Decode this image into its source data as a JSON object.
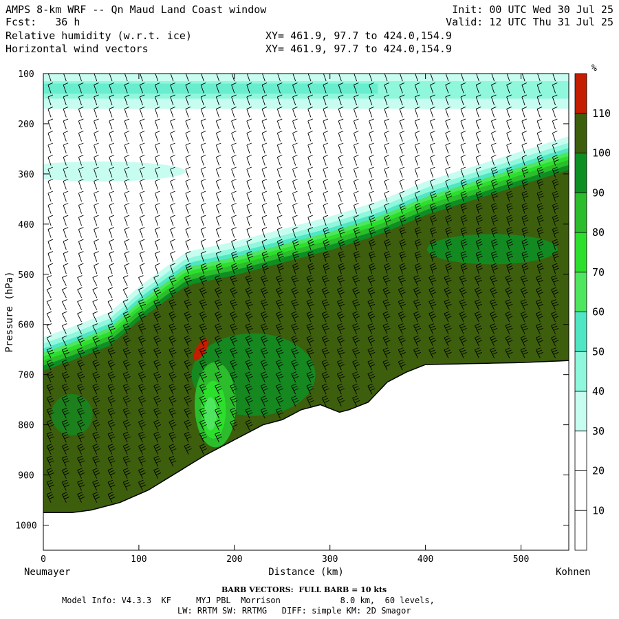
{
  "header": {
    "title": "AMPS 8-km WRF -- Qn Maud Land Coast window",
    "fcst": "Fcst:   36 h",
    "line3": "Relative humidity (w.r.t. ice)",
    "line4": "Horizontal wind vectors",
    "xy1": "XY= 461.9, 97.7 to 424.0,154.9",
    "xy2": "XY= 461.9, 97.7 to 424.0,154.9",
    "init": "Init: 00 UTC Wed 30 Jul 25",
    "valid": "Valid: 12 UTC Thu 31 Jul 25"
  },
  "footer": {
    "barb": "BARB VECTORS:  FULL BARB = 10 kts",
    "model1": "Model Info: V4.3.3  KF     MYJ PBL  Morrison            8.0 km,  60 levels,",
    "model2": "LW: RRTM SW: RRTMG   DIFF: simple KM: 2D Smagor"
  },
  "colors": {
    "c0": "#ffffff",
    "c30": "#c7fdf0",
    "c40": "#8ef7dc",
    "c50": "#4fe6c4",
    "c60": "#4ee65f",
    "c70": "#2cdf2c",
    "c80": "#2bbd2b",
    "c90": "#0e8f24",
    "c100": "#3d5e0d",
    "c110": "#c41d00"
  },
  "chart_data": {
    "type": "heatmap",
    "title": "Relative humidity (w.r.t. ice)",
    "xlabel": "Distance (km)",
    "ylabel": "Pressure (hPa)",
    "xlim": [
      0,
      550
    ],
    "ylim": [
      1050,
      100
    ],
    "x_ticks": [
      0,
      100,
      200,
      300,
      400,
      500
    ],
    "y_ticks": [
      100,
      200,
      300,
      400,
      500,
      600,
      700,
      800,
      900,
      1000
    ],
    "left_endpoint": "Neumayer",
    "right_endpoint": "Kohnen",
    "colorbar_unit": "%",
    "colorbar_ticks": [
      10,
      20,
      30,
      40,
      50,
      60,
      70,
      80,
      90,
      100,
      110
    ],
    "terrain_surface_hPa": {
      "x": [
        0,
        30,
        50,
        80,
        110,
        140,
        170,
        200,
        230,
        250,
        270,
        290,
        310,
        320,
        340,
        360,
        380,
        400,
        450,
        500,
        550
      ],
      "p": [
        975,
        975,
        970,
        955,
        930,
        895,
        860,
        830,
        800,
        790,
        770,
        760,
        775,
        770,
        755,
        715,
        695,
        680,
        678,
        676,
        672
      ]
    },
    "moist_layer_top_hPa": {
      "x": [
        0,
        30,
        70,
        100,
        150,
        200,
        250,
        300,
        350,
        400,
        450,
        500,
        550
      ],
      "p": [
        660,
        640,
        610,
        560,
        490,
        470,
        445,
        420,
        390,
        350,
        320,
        290,
        260
      ]
    },
    "upper_moist_band_hPa": {
      "bottom": 170,
      "top": 100
    },
    "max_rh_spot": {
      "x": 165,
      "p": 650,
      "rh": 110
    }
  }
}
